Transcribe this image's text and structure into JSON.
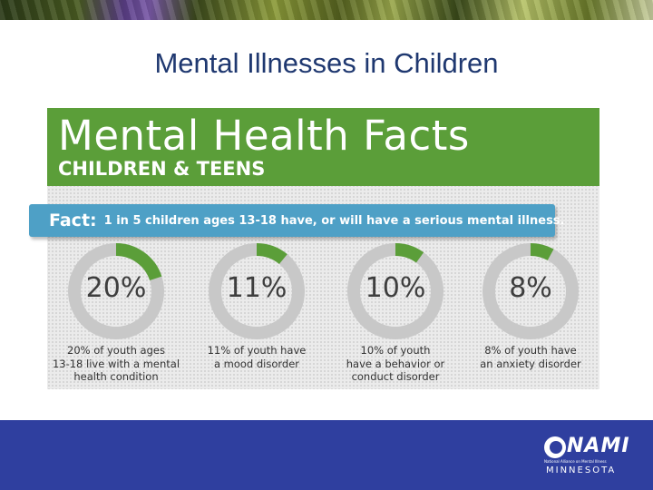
{
  "slide": {
    "title": "Mental Illnesses in Children"
  },
  "infographic": {
    "heading": "Mental Health Facts",
    "subheading": "CHILDREN & TEENS",
    "fact_label": "Fact:",
    "fact_text": "1 in 5 children ages 13-18 have, or will have a serious mental illness.",
    "stats": [
      {
        "value": "20%",
        "fraction": 0.2,
        "caption": "20% of youth ages\n13-18 live with a mental\nhealth condition"
      },
      {
        "value": "11%",
        "fraction": 0.11,
        "caption": "11% of youth have\na mood disorder"
      },
      {
        "value": "10%",
        "fraction": 0.1,
        "caption": "10% of youth\nhave a behavior or\nconduct disorder"
      },
      {
        "value": "8%",
        "fraction": 0.08,
        "caption": "8% of youth have\nan anxiety disorder"
      }
    ]
  },
  "footer": {
    "logo_wordmark": "NAMI",
    "logo_tagline": "National Alliance on Mental Illness",
    "logo_state": "MINNESOTA"
  },
  "colors": {
    "title": "#1f3870",
    "banner_green": "#5b9e39",
    "fact_blue": "#4ea0c6",
    "ring_gray": "#c8c8c8",
    "ring_green": "#5b9e39",
    "footer_blue": "#2f3f9f"
  }
}
